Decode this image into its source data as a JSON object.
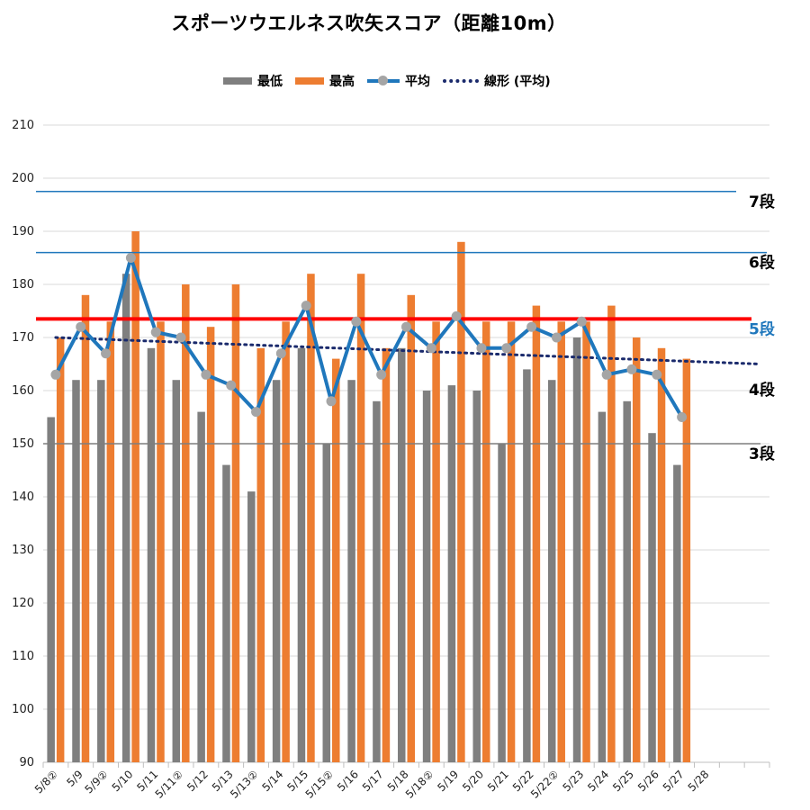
{
  "chart_data": {
    "type": "bar",
    "title": "スポーツウエルネス吹矢スコア（距離10m）",
    "ylim": [
      90,
      210
    ],
    "y_ticks": [
      90,
      100,
      110,
      120,
      130,
      140,
      150,
      160,
      170,
      180,
      190,
      200,
      210
    ],
    "grid": true,
    "legend_position": "top",
    "categories": [
      "5/8②",
      "5/9",
      "5/9②",
      "5/10",
      "5/11",
      "5/11②",
      "5/12",
      "5/13",
      "5/13②",
      "5/14",
      "5/15",
      "5/15②",
      "5/16",
      "5/17",
      "5/18",
      "5/18②",
      "5/19",
      "5/20",
      "5/21",
      "5/22",
      "5/22②",
      "5/23",
      "5/24",
      "5/25",
      "5/26",
      "5/27",
      "5/28"
    ],
    "series": [
      {
        "name": "最低",
        "type": "bar",
        "color": "#7f7f7f",
        "values": [
          155,
          162,
          162,
          182,
          168,
          162,
          156,
          146,
          141,
          162,
          168,
          150,
          162,
          158,
          168,
          160,
          161,
          160,
          150,
          164,
          162,
          170,
          156,
          158,
          152,
          146,
          null
        ]
      },
      {
        "name": "最高",
        "type": "bar",
        "color": "#ed7d31",
        "values": [
          170,
          178,
          173,
          190,
          173,
          180,
          172,
          180,
          168,
          173,
          182,
          166,
          182,
          168,
          178,
          173,
          188,
          173,
          173,
          176,
          173,
          173,
          176,
          170,
          168,
          166,
          null
        ]
      },
      {
        "name": "平均",
        "type": "line",
        "color": "#1f77bc",
        "marker_color": "#a5a5a5",
        "values": [
          163,
          172,
          167,
          185,
          171,
          170,
          163,
          161,
          156,
          167,
          176,
          158,
          173,
          163,
          172,
          168,
          174,
          168,
          168,
          172,
          170,
          173,
          163,
          164,
          163,
          155,
          null
        ]
      },
      {
        "name": "線形 (平均)",
        "type": "trendline",
        "color": "#1a2a6c",
        "start": 170,
        "end": 165
      }
    ],
    "reference_lines": [
      {
        "label": "7段",
        "value": 197.5,
        "color": "#1f77bc",
        "label_color": "#000000"
      },
      {
        "label": "6段",
        "value": 186,
        "color": "#1f77bc",
        "label_color": "#000000"
      },
      {
        "label": "5段",
        "value": 173.5,
        "color": "#ff0000",
        "label_color": "#1f77bc"
      },
      {
        "label": "4段",
        "value": 162,
        "color": null,
        "label_color": "#000000"
      },
      {
        "label": "3段",
        "value": 150,
        "color": "#7f7f7f",
        "label_color": "#000000"
      }
    ]
  }
}
